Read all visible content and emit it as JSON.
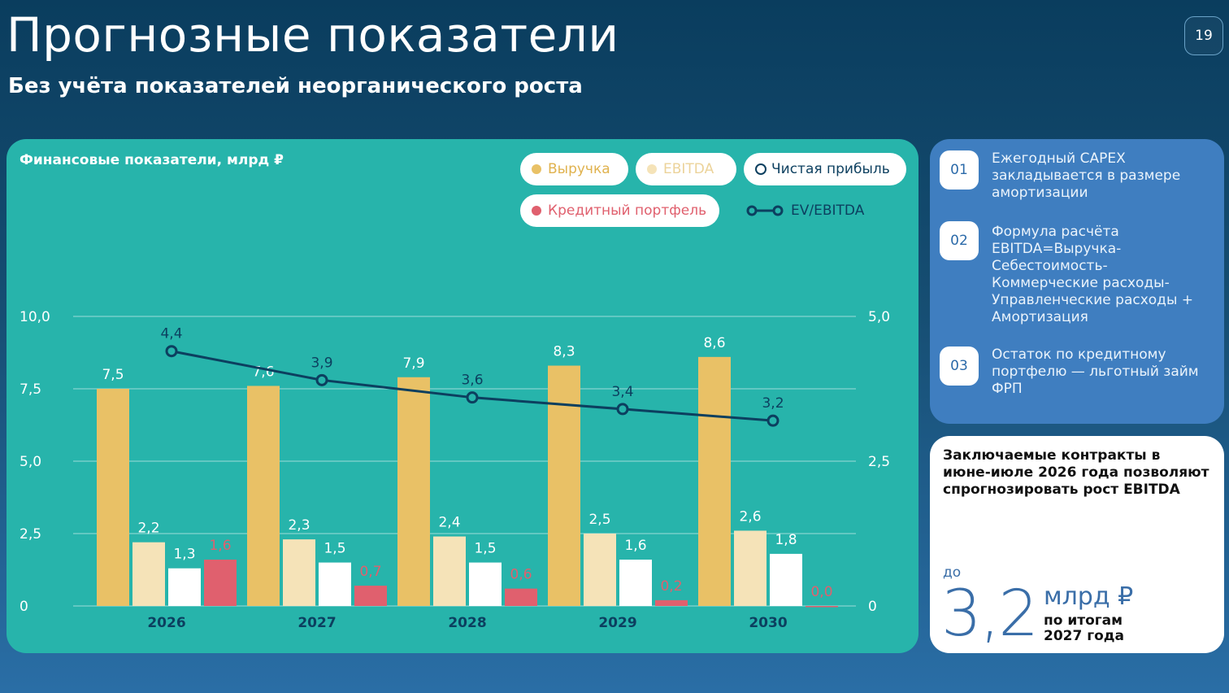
{
  "header": {
    "title": "Прогнозные показатели",
    "subtitle": "Без учёта показателей неорганического роста",
    "page_number": "19"
  },
  "chart_card": {
    "title": "Финансовые показатели, млрд ₽"
  },
  "legend": {
    "revenue": "Выручка",
    "ebitda": "EBITDA",
    "net_profit": "Чистая прибыль",
    "credit": "Кредитный портфель",
    "ev_ebitda": "EV/EBITDA"
  },
  "colors": {
    "revenue": "#e9c166",
    "ebitda": "#f5e3b8",
    "net_profit": "#ffffff",
    "credit": "#e0606e",
    "ev_ebitda": "#0c3f5f",
    "chart_bg": "#27b4ab"
  },
  "chart_data": {
    "type": "bar",
    "categories": [
      "2026",
      "2027",
      "2028",
      "2029",
      "2030"
    ],
    "series": [
      {
        "name": "Выручка",
        "values": [
          7.5,
          7.6,
          7.9,
          8.3,
          8.6
        ],
        "labels": [
          "7,5",
          "7,6",
          "7,9",
          "8,3",
          "8,6"
        ],
        "axis": "left"
      },
      {
        "name": "EBITDA",
        "values": [
          2.2,
          2.3,
          2.4,
          2.5,
          2.6
        ],
        "labels": [
          "2,2",
          "2,3",
          "2,4",
          "2,5",
          "2,6"
        ],
        "axis": "left"
      },
      {
        "name": "Чистая прибыль",
        "values": [
          1.3,
          1.5,
          1.5,
          1.6,
          1.8
        ],
        "labels": [
          "1,3",
          "1,5",
          "1,5",
          "1,6",
          "1,8"
        ],
        "axis": "left"
      },
      {
        "name": "Кредитный портфель",
        "values": [
          1.6,
          0.7,
          0.6,
          0.2,
          0.0
        ],
        "labels": [
          "1,6",
          "0,7",
          "0,6",
          "0,2",
          "0,0"
        ],
        "axis": "left"
      }
    ],
    "line_series": {
      "name": "EV/EBITDA",
      "type": "line",
      "values": [
        4.4,
        3.9,
        3.6,
        3.4,
        3.2
      ],
      "labels": [
        "4,4",
        "3,9",
        "3,6",
        "3,4",
        "3,2"
      ],
      "axis": "right"
    },
    "y_left": {
      "min": 0,
      "max": 10,
      "ticks": [
        0,
        2.5,
        5,
        7.5,
        10
      ],
      "tick_labels": [
        "0",
        "2,5",
        "5,0",
        "7,5",
        "10,0"
      ]
    },
    "y_right": {
      "min": 0,
      "max": 5,
      "ticks": [
        0,
        2.5,
        5
      ],
      "tick_labels": [
        "0",
        "2,5",
        "5,0"
      ]
    },
    "grid": true,
    "legend_position": "top-right"
  },
  "notes": [
    {
      "num": "01",
      "text": "Ежегодный CAPEX закладывается в размере амортизации"
    },
    {
      "num": "02",
      "text": "Формула расчёта EBITDA=Выручка-Себестоимость-Коммерческие расходы-Управленческие расходы + Амортизация"
    },
    {
      "num": "03",
      "text": "Остаток по кредитному портфелю — льготный займ ФРП"
    }
  ],
  "promo": {
    "text": "Заключаемые контракты в июне-июле 2026 года позволяют спрогнозировать рост EBITDA",
    "prefix": "до",
    "value": "3,2",
    "unit": "млрд ₽",
    "caption": "по итогам 2027 года"
  }
}
